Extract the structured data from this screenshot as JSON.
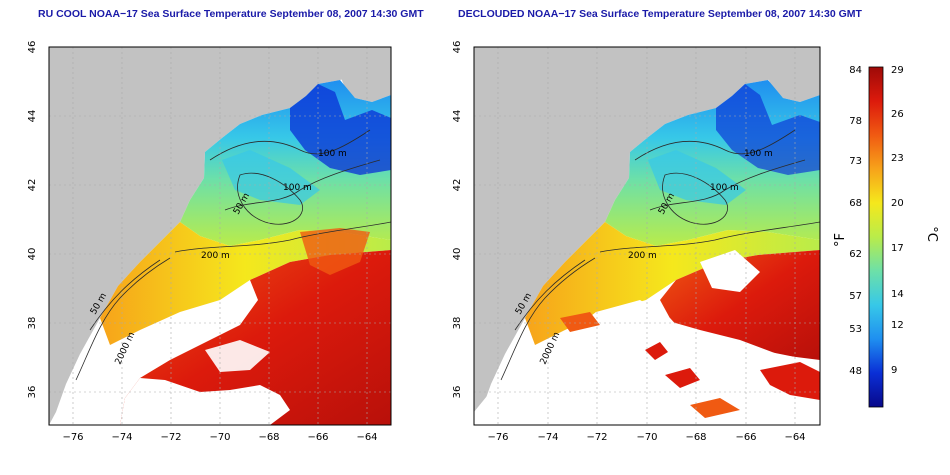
{
  "left_panel": {
    "title": "RU COOL NOAA−17 Sea Surface Temperature September 08, 2007 14:30 GMT",
    "contours": [
      "100 m",
      "50 m",
      "100 m",
      "200 m",
      "50 m",
      "2000 m"
    ]
  },
  "right_panel": {
    "title": "DECLOUDED NOAA−17 Sea Surface Temperature September 08, 2007 14:30 GMT",
    "contours": [
      "100 m",
      "50 m",
      "100 m",
      "200 m",
      "50 m",
      "2000 m"
    ]
  },
  "axes": {
    "x_ticks": [
      "−76",
      "−74",
      "−72",
      "−70",
      "−68",
      "−66",
      "−64"
    ],
    "y_ticks": [
      "46",
      "44",
      "42",
      "40",
      "38",
      "36"
    ]
  },
  "colorbar": {
    "fahrenheit_label": "°F",
    "celsius_label": "°C",
    "fahrenheit_ticks": [
      "84",
      "78",
      "73",
      "68",
      "62",
      "57",
      "53",
      "48"
    ],
    "celsius_ticks": [
      "29",
      "26",
      "23",
      "20",
      "17",
      "14",
      "12",
      "9"
    ],
    "colors": [
      "#08088a",
      "#0a2fd6",
      "#1f8ff0",
      "#37c8e8",
      "#6de0a8",
      "#b9ec4a",
      "#f5e81c",
      "#f7a31a",
      "#f05a12",
      "#dc1a0c",
      "#9e0a08"
    ]
  },
  "colors": {
    "land": "#c2c2c2",
    "ocean_no_data": "#ffffff",
    "title": "#1a1aa8",
    "contour": "#2b2b2b"
  }
}
